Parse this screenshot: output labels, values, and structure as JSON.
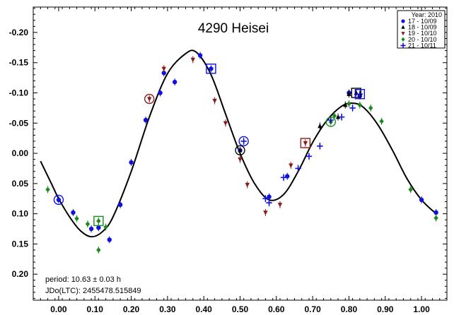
{
  "chart_data": {
    "type": "scatter",
    "title": "4290 Heisei",
    "xlabel": "",
    "ylabel": "",
    "xlim": [
      -0.07,
      1.07
    ],
    "ylim": [
      0.243,
      -0.242
    ],
    "y_inverted": true,
    "grid": false,
    "legend_position": "top-right",
    "legend_title": "Year: 2010",
    "x_ticks": [
      0.0,
      0.1,
      0.2,
      0.3,
      0.4,
      0.5,
      0.6,
      0.7,
      0.8,
      0.9,
      1.0
    ],
    "x_tick_labels": [
      "0.00",
      "0.10",
      "0.20",
      "0.30",
      "0.40",
      "0.50",
      "0.60",
      "0.70",
      "0.80",
      "0.90",
      "1.00"
    ],
    "y_ticks": [
      -0.2,
      -0.15,
      -0.1,
      -0.05,
      0.0,
      0.05,
      0.1,
      0.15,
      0.2
    ],
    "y_tick_labels": [
      "-0.20",
      "-0.15",
      "-0.10",
      "-0.05",
      "0.00",
      "0.05",
      "0.10",
      "0.15",
      "0.20"
    ],
    "annotations": [
      "period: 10.63 ± 0.03 h",
      "JDo(LTC): 2455478.515849"
    ],
    "fit_curve": {
      "color": "#000000",
      "x": [
        -0.05,
        -0.02,
        0.0,
        0.03,
        0.06,
        0.09,
        0.12,
        0.15,
        0.2,
        0.25,
        0.3,
        0.35,
        0.38,
        0.42,
        0.46,
        0.5,
        0.54,
        0.58,
        0.62,
        0.66,
        0.7,
        0.74,
        0.78,
        0.81,
        0.84,
        0.88,
        0.92,
        0.96,
        1.0,
        1.04
      ],
      "y": [
        0.013,
        0.05,
        0.075,
        0.105,
        0.128,
        0.138,
        0.13,
        0.105,
        0.03,
        -0.06,
        -0.132,
        -0.165,
        -0.167,
        -0.13,
        -0.065,
        0.0,
        0.05,
        0.077,
        0.068,
        0.03,
        -0.018,
        -0.055,
        -0.078,
        -0.083,
        -0.076,
        -0.047,
        -0.005,
        0.042,
        0.077,
        0.1
      ]
    },
    "series": [
      {
        "name": "17 - 10/09",
        "color": "#1010e0",
        "marker": "circle",
        "x": [
          0.0,
          0.04,
          0.09,
          0.11,
          0.14,
          0.17,
          0.2,
          0.24,
          0.28,
          0.29,
          0.32,
          0.39,
          0.42,
          0.5,
          0.58,
          0.63,
          0.8,
          0.83,
          1.0,
          1.04
        ],
        "y": [
          0.077,
          0.098,
          0.125,
          0.123,
          0.143,
          0.085,
          0.015,
          -0.055,
          -0.1,
          -0.133,
          -0.118,
          -0.162,
          -0.14,
          -0.005,
          0.072,
          0.038,
          -0.1,
          -0.095,
          0.077,
          0.098
        ]
      },
      {
        "name": "18 - 10/09",
        "color": "#000000",
        "marker": "triangle-up",
        "x": [
          0.5,
          0.72,
          0.77,
          0.79,
          0.8,
          0.82
        ],
        "y": [
          -0.005,
          -0.045,
          -0.06,
          -0.08,
          -0.098,
          -0.1
        ]
      },
      {
        "name": "19 - 10/10",
        "color": "#8b1a1a",
        "marker": "triangle-down",
        "x": [
          0.25,
          0.29,
          0.37,
          0.43,
          0.46,
          0.5,
          0.52,
          0.57,
          0.61,
          0.64,
          0.68
        ],
        "y": [
          -0.09,
          -0.14,
          -0.155,
          -0.087,
          -0.05,
          0.01,
          0.052,
          0.098,
          0.085,
          0.02,
          -0.017
        ]
      },
      {
        "name": "20 - 10/10",
        "color": "#1a8a1a",
        "marker": "diamond",
        "x": [
          -0.03,
          0.05,
          0.08,
          0.11,
          0.11,
          0.13,
          0.75,
          0.76,
          0.8,
          0.83,
          0.86,
          0.89,
          0.97,
          1.04
        ],
        "y": [
          0.06,
          0.108,
          0.117,
          0.112,
          0.16,
          0.122,
          -0.052,
          -0.062,
          -0.082,
          -0.08,
          -0.075,
          -0.053,
          0.06,
          0.107
        ]
      },
      {
        "name": "21 - 10/11",
        "color": "#1010e0",
        "marker": "plus",
        "x": [
          0.51,
          0.57,
          0.58,
          0.62,
          0.66,
          0.69,
          0.72,
          0.75,
          0.78,
          0.81,
          0.83
        ],
        "y": [
          -0.02,
          0.075,
          0.082,
          0.04,
          0.025,
          0.005,
          -0.012,
          -0.055,
          -0.06,
          -0.075,
          -0.098
        ]
      }
    ],
    "highlighted_points": [
      {
        "series": "17 - 10/09",
        "x": 0.0,
        "y": 0.077,
        "frame": "circle",
        "color": "#1010e0"
      },
      {
        "series": "17 - 10/09",
        "x": 0.42,
        "y": -0.14,
        "frame": "square",
        "color": "#1010e0"
      },
      {
        "series": "18 - 10/09",
        "x": 0.5,
        "y": -0.005,
        "frame": "circle",
        "color": "#000000"
      },
      {
        "series": "18 - 10/09",
        "x": 0.82,
        "y": -0.1,
        "frame": "square",
        "color": "#000000"
      },
      {
        "series": "19 - 10/10",
        "x": 0.25,
        "y": -0.09,
        "frame": "circle",
        "color": "#8b1a1a"
      },
      {
        "series": "19 - 10/10",
        "x": 0.68,
        "y": -0.017,
        "frame": "square",
        "color": "#8b1a1a"
      },
      {
        "series": "20 - 10/10",
        "x": 0.11,
        "y": 0.112,
        "frame": "square",
        "color": "#1a8a1a"
      },
      {
        "series": "20 - 10/10",
        "x": 0.75,
        "y": -0.052,
        "frame": "circle",
        "color": "#1a8a1a"
      },
      {
        "series": "21 - 10/11",
        "x": 0.51,
        "y": -0.02,
        "frame": "circle",
        "color": "#1010e0"
      },
      {
        "series": "21 - 10/11",
        "x": 0.83,
        "y": -0.098,
        "frame": "square",
        "color": "#1010e0"
      }
    ]
  }
}
